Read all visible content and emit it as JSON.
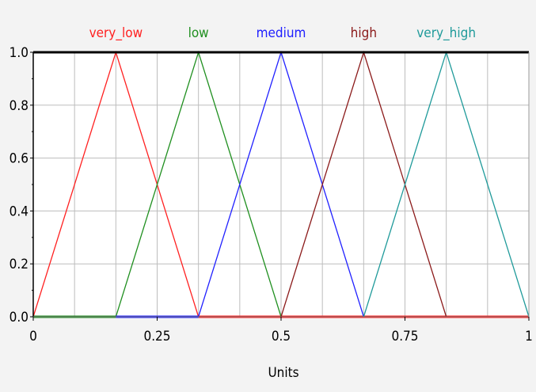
{
  "chart_data": {
    "type": "line",
    "title": "",
    "xlabel": "Units",
    "ylabel": "",
    "xlim": [
      0,
      1
    ],
    "ylim": [
      0,
      1
    ],
    "grid": true,
    "legend_position": "top",
    "x_ticks": [
      0,
      0.25,
      0.5,
      0.75,
      1
    ],
    "x_tick_labels": [
      "0",
      "0.25",
      "0.5",
      "0.75",
      "1"
    ],
    "y_ticks": [
      0,
      0.2,
      0.4,
      0.6,
      0.8,
      1
    ],
    "y_tick_labels": [
      "0.0",
      "0.2",
      "0.4",
      "0.6",
      "0.8",
      "1.0"
    ],
    "series": [
      {
        "name": "very_low",
        "color": "#ff2020",
        "x": [
          0,
          0.1667,
          0.3333,
          1
        ],
        "y": [
          0,
          1,
          0,
          0
        ]
      },
      {
        "name": "low",
        "color": "#1f8f1f",
        "x": [
          0,
          0.1667,
          0.3333,
          0.5
        ],
        "y": [
          0,
          0,
          1,
          0
        ]
      },
      {
        "name": "medium",
        "color": "#2020ff",
        "x": [
          0.1667,
          0.3333,
          0.5,
          0.6667
        ],
        "y": [
          0,
          0,
          1,
          0
        ]
      },
      {
        "name": "high",
        "color": "#8b1a1a",
        "x": [
          0.5,
          0.6667,
          0.8333
        ],
        "y": [
          0,
          1,
          0
        ]
      },
      {
        "name": "very_high",
        "color": "#1f9a9a",
        "x": [
          0.6667,
          0.8333,
          1
        ],
        "y": [
          0,
          1,
          0
        ]
      }
    ]
  }
}
